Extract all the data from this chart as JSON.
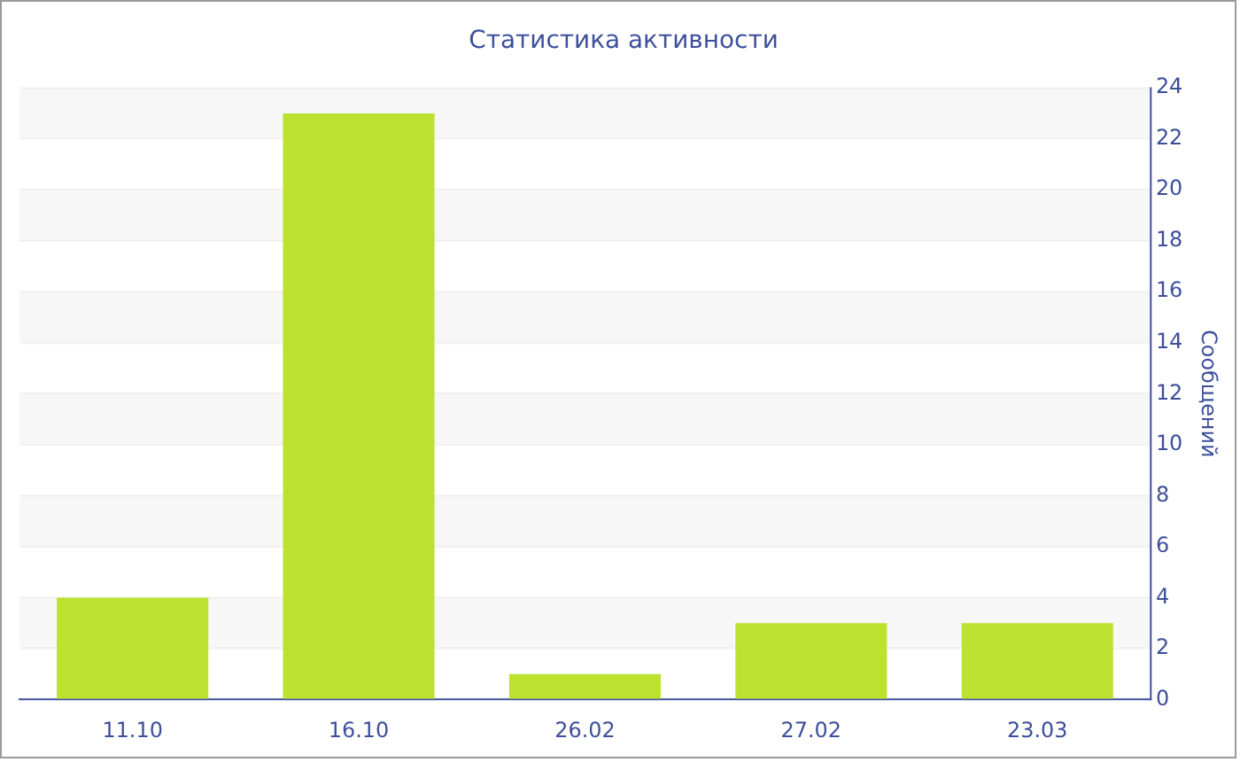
{
  "chart_data": {
    "type": "bar",
    "title": "Статистика активности",
    "ylabel": "Сообщений",
    "categories": [
      "11.10",
      "16.10",
      "26.02",
      "27.02",
      "23.03"
    ],
    "values": [
      4,
      23,
      1,
      3,
      3
    ],
    "color": "#bce22f",
    "ylim": [
      0,
      24
    ],
    "yticks": [
      0,
      2,
      4,
      6,
      8,
      10,
      12,
      14,
      16,
      18,
      20,
      22,
      24
    ],
    "grid": "y"
  }
}
